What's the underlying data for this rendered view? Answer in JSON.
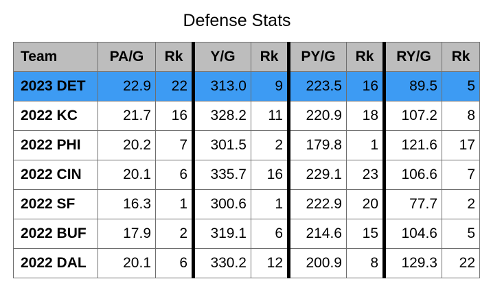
{
  "title": "Defense Stats",
  "chart_data": {
    "type": "table",
    "title": "Defense Stats",
    "columns": [
      "Team",
      "PA/G",
      "Rk",
      "Y/G",
      "Rk",
      "PY/G",
      "Rk",
      "RY/G",
      "Rk"
    ],
    "rows": [
      [
        "2023 DET",
        "22.9",
        "22",
        "313.0",
        "9",
        "223.5",
        "16",
        "89.5",
        "5"
      ],
      [
        "2022 KC",
        "21.7",
        "16",
        "328.2",
        "11",
        "220.9",
        "18",
        "107.2",
        "8"
      ],
      [
        "2022 PHI",
        "20.2",
        "7",
        "301.5",
        "2",
        "179.8",
        "1",
        "121.6",
        "17"
      ],
      [
        "2022 CIN",
        "20.1",
        "6",
        "335.7",
        "16",
        "229.1",
        "23",
        "106.6",
        "7"
      ],
      [
        "2022 SF",
        "16.3",
        "1",
        "300.6",
        "1",
        "222.9",
        "20",
        "77.7",
        "2"
      ],
      [
        "2022 BUF",
        "17.9",
        "2",
        "319.1",
        "6",
        "214.6",
        "15",
        "104.6",
        "5"
      ],
      [
        "2022 DAL",
        "20.1",
        "6",
        "330.2",
        "12",
        "200.9",
        "8",
        "129.3",
        "22"
      ]
    ],
    "highlight_row": 0,
    "colors": {
      "header_bg": "#bdbdbd",
      "highlight_bg": "#3d9bf3",
      "cell_bg": "#ffffff",
      "separator": "#000000"
    }
  }
}
